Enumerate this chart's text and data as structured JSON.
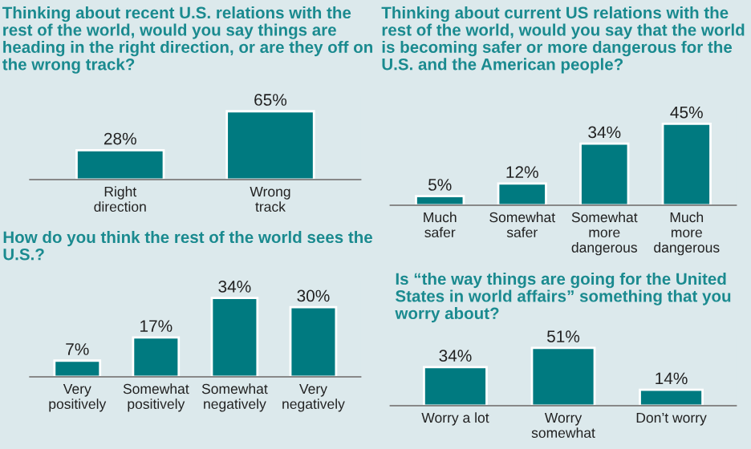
{
  "chart_data": [
    {
      "type": "bar",
      "title": "Thinking about recent U.S. relations with the rest of the world, would you say things are heading in the right direction, or are they off on the wrong track?",
      "categories": [
        "Right\ndirection",
        "Wrong\ntrack"
      ],
      "values": [
        28,
        65
      ],
      "value_labels": [
        "28%",
        "65%"
      ],
      "color": "#007a80"
    },
    {
      "type": "bar",
      "title": "Thinking about current US relations with the rest of the world, would you say that the world is becoming safer or more dangerous for the U.S. and the American people?",
      "categories": [
        "Much\nsafer",
        "Somewhat\nsafer",
        "Somewhat\nmore\ndangerous",
        "Much\nmore\ndangerous"
      ],
      "values": [
        5,
        12,
        34,
        45
      ],
      "value_labels": [
        "5%",
        "12%",
        "34%",
        "45%"
      ],
      "color": "#007a80"
    },
    {
      "type": "bar",
      "title": "How do you think the rest of the world sees the U.S.?",
      "categories": [
        "Very\npositively",
        "Somewhat\npositively",
        "Somewhat\nnegatively",
        "Very\nnegatively"
      ],
      "values": [
        7,
        17,
        34,
        30
      ],
      "value_labels": [
        "7%",
        "17%",
        "34%",
        "30%"
      ],
      "color": "#007a80"
    },
    {
      "type": "bar",
      "title": "Is “the way things are going for the United States in world affairs” something that you worry about?",
      "categories": [
        "Worry a lot",
        "Worry\nsomewhat",
        "Don’t worry"
      ],
      "values": [
        34,
        51,
        14
      ],
      "value_labels": [
        "34%",
        "51%",
        "14%"
      ],
      "color": "#007a80"
    }
  ]
}
